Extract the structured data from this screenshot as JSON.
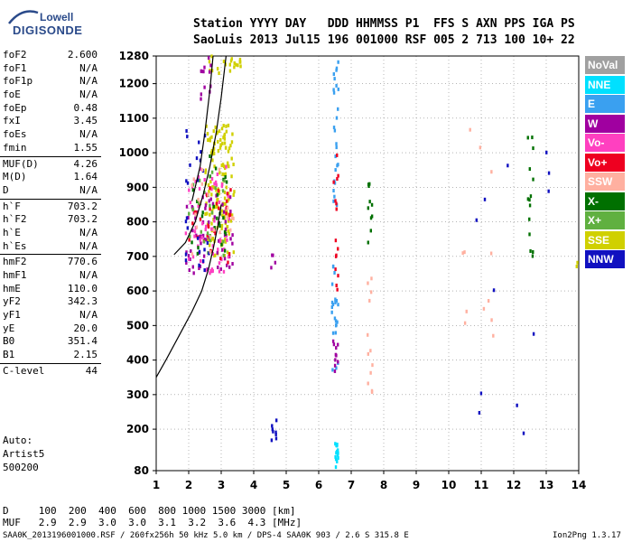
{
  "logo": {
    "line1": "Lowell",
    "line2": "DIGISONDE"
  },
  "header": {
    "row1": "Station YYYY DAY   DDD HHMMSS P1  FFS S AXN PPS IGA PS",
    "row2": "SaoLuis 2013 Jul15 196 001000 RSF 005 2 713 100 10+ 22"
  },
  "params": [
    {
      "name": "foF2",
      "value": "2.600"
    },
    {
      "name": "foF1",
      "value": "N/A"
    },
    {
      "name": "foF1p",
      "value": "N/A"
    },
    {
      "name": "foE",
      "value": "N/A"
    },
    {
      "name": "foEp",
      "value": "0.48"
    },
    {
      "name": "fxI",
      "value": "3.45"
    },
    {
      "name": "foEs",
      "value": "N/A"
    },
    {
      "name": "fmin",
      "value": "1.55"
    },
    {
      "sep": true
    },
    {
      "name": "MUF(D)",
      "value": "4.26"
    },
    {
      "name": "M(D)",
      "value": "1.64"
    },
    {
      "name": "D",
      "value": "N/A"
    },
    {
      "sep": true
    },
    {
      "name": "h`F",
      "value": "703.2"
    },
    {
      "name": "h`F2",
      "value": "703.2"
    },
    {
      "name": "h`E",
      "value": "N/A"
    },
    {
      "name": "h`Es",
      "value": "N/A"
    },
    {
      "sep": true
    },
    {
      "name": "hmF2",
      "value": "770.6"
    },
    {
      "name": "hmF1",
      "value": "N/A"
    },
    {
      "name": "hmE",
      "value": "110.0"
    },
    {
      "name": "yF2",
      "value": "342.3"
    },
    {
      "name": "yF1",
      "value": "N/A"
    },
    {
      "name": "yE",
      "value": "20.0"
    },
    {
      "name": "B0",
      "value": "351.4"
    },
    {
      "name": "B1",
      "value": "2.15"
    },
    {
      "sep": true
    },
    {
      "name": "C-level",
      "value": "44"
    }
  ],
  "auto": {
    "line1": "Auto:",
    "line2": "Artist5",
    "line3": "500200"
  },
  "bottom": {
    "d_row": "D     100  200  400  600  800 1000 1500 3000 [km]",
    "muf_row": "MUF   2.9  2.9  3.0  3.0  3.1  3.2  3.6  4.3 [MHz]"
  },
  "footer": {
    "left": "SAA0K_2013196001000.RSF / 260fx256h 50 kHz 5.0 km / DPS-4 SAA0K 903 / 2.6 S 315.8 E",
    "right": "Ion2Png 1.3.17"
  },
  "legend": [
    {
      "label": "NoVal",
      "color": "#a0a0a0"
    },
    {
      "label": "NNE",
      "color": "#00e0ff"
    },
    {
      "label": "E",
      "color": "#3aa0f0"
    },
    {
      "label": "W",
      "color": "#a000a0"
    },
    {
      "label": "Vo-",
      "color": "#ff40c0"
    },
    {
      "label": "Vo+",
      "color": "#ee0020"
    },
    {
      "label": "SSW",
      "color": "#ffb0a0"
    },
    {
      "label": "X-",
      "color": "#007000"
    },
    {
      "label": "X+",
      "color": "#60b040"
    },
    {
      "label": "SSE",
      "color": "#d0d000"
    },
    {
      "label": "NNW",
      "color": "#1010c0"
    }
  ],
  "chart_data": {
    "type": "scatter",
    "title": "",
    "xlabel": "",
    "ylabel": "",
    "xlim": [
      1,
      14
    ],
    "ylim": [
      80,
      1280
    ],
    "x_ticks": [
      1,
      2,
      3,
      4,
      5,
      6,
      7,
      8,
      9,
      10,
      11,
      12,
      13,
      14
    ],
    "y_ticks": [
      80,
      200,
      300,
      400,
      500,
      600,
      700,
      800,
      900,
      1000,
      1100,
      1200,
      1280
    ],
    "grid": true,
    "legend_position": "right",
    "profile_curve": [
      [
        1.0,
        350
      ],
      [
        1.3,
        400
      ],
      [
        1.7,
        470
      ],
      [
        2.1,
        540
      ],
      [
        2.4,
        600
      ],
      [
        2.6,
        660
      ],
      [
        2.75,
        720
      ],
      [
        2.9,
        790
      ],
      [
        3.0,
        850
      ]
    ],
    "trace_curve": [
      [
        1.55,
        705
      ],
      [
        1.9,
        740
      ],
      [
        2.2,
        800
      ],
      [
        2.45,
        880
      ],
      [
        2.65,
        960
      ],
      [
        2.85,
        1060
      ],
      [
        3.0,
        1160
      ],
      [
        3.15,
        1280
      ]
    ],
    "trace_curve2": [
      [
        2.1,
        860
      ],
      [
        2.35,
        960
      ],
      [
        2.5,
        1060
      ],
      [
        2.65,
        1180
      ],
      [
        2.75,
        1280
      ]
    ],
    "clusters": [
      {
        "category": "SSE",
        "x": [
          2.5,
          3.4
        ],
        "y": [
          700,
          1080
        ],
        "n": 150
      },
      {
        "category": "SSE",
        "x": [
          2.6,
          3.6
        ],
        "y": [
          1230,
          1280
        ],
        "n": 20
      },
      {
        "category": "W",
        "x": [
          1.9,
          3.4
        ],
        "y": [
          650,
          880
        ],
        "n": 60
      },
      {
        "category": "Vo-",
        "x": [
          1.9,
          3.3
        ],
        "y": [
          650,
          960
        ],
        "n": 60
      },
      {
        "category": "Vo+",
        "x": [
          2.0,
          3.3
        ],
        "y": [
          680,
          900
        ],
        "n": 30
      },
      {
        "category": "X-",
        "x": [
          2.0,
          3.2
        ],
        "y": [
          700,
          1000
        ],
        "n": 25
      },
      {
        "category": "X+",
        "x": [
          2.0,
          3.2
        ],
        "y": [
          700,
          960
        ],
        "n": 25
      },
      {
        "category": "NNW",
        "x": [
          1.9,
          2.7
        ],
        "y": [
          660,
          1100
        ],
        "n": 25
      },
      {
        "category": "SSW",
        "x": [
          2.0,
          3.4
        ],
        "y": [
          700,
          980
        ],
        "n": 20
      },
      {
        "category": "W",
        "x": [
          2.3,
          2.7
        ],
        "y": [
          1150,
          1280
        ],
        "n": 12
      },
      {
        "category": "E",
        "x": [
          6.45,
          6.6
        ],
        "y": [
          840,
          1280
        ],
        "n": 25
      },
      {
        "category": "Vo+",
        "x": [
          6.45,
          6.6
        ],
        "y": [
          580,
          1020
        ],
        "n": 15
      },
      {
        "category": "E",
        "x": [
          6.4,
          6.6
        ],
        "y": [
          360,
          680
        ],
        "n": 22
      },
      {
        "category": "W",
        "x": [
          6.4,
          6.6
        ],
        "y": [
          360,
          460
        ],
        "n": 10
      },
      {
        "category": "NNE",
        "x": [
          6.5,
          6.6
        ],
        "y": [
          90,
          170
        ],
        "n": 14
      },
      {
        "category": "X-",
        "x": [
          7.5,
          7.65
        ],
        "y": [
          720,
          940
        ],
        "n": 10
      },
      {
        "category": "SSW",
        "x": [
          7.5,
          7.7
        ],
        "y": [
          280,
          650
        ],
        "n": 12
      },
      {
        "category": "NNW",
        "x": [
          4.5,
          4.7
        ],
        "y": [
          150,
          230
        ],
        "n": 8
      },
      {
        "category": "W",
        "x": [
          4.5,
          4.7
        ],
        "y": [
          660,
          720
        ],
        "n": 4
      },
      {
        "category": "X-",
        "x": [
          12.4,
          12.6
        ],
        "y": [
          680,
          1100
        ],
        "n": 14
      },
      {
        "category": "SSW",
        "x": [
          10.4,
          11.4
        ],
        "y": [
          280,
          1100
        ],
        "n": 12
      },
      {
        "category": "NNW",
        "x": [
          10.8,
          13.2
        ],
        "y": [
          180,
          1200
        ],
        "n": 12
      },
      {
        "category": "SSE",
        "x": [
          13.9,
          14.0
        ],
        "y": [
          670,
          690
        ],
        "n": 2
      }
    ]
  }
}
